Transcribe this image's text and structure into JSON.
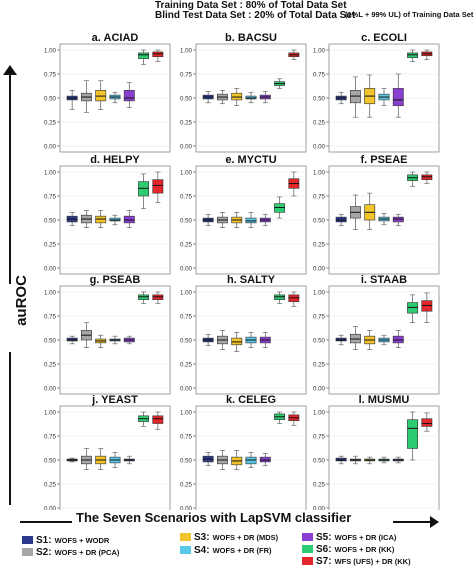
{
  "header": {
    "line1": "Training Data Set : 80% of Total Data Set",
    "line2": "Blind Test Data Set : 20% of Total Data Set",
    "note": "(1%L + 99% UL) of Training Data Set"
  },
  "y_axis_label": "auROC",
  "x_axis_label": "The Seven  Scenarios with LapSVM classifier",
  "legend": [
    {
      "code": "S1:",
      "desc": "WOFS + WODR",
      "color": "#2b3a8f"
    },
    {
      "code": "S2:",
      "desc": "WOFS + DR (PCA)",
      "color": "#a6a6a6"
    },
    {
      "code": "S3:",
      "desc": "WOFS + DR (MDS)",
      "color": "#f2c42c"
    },
    {
      "code": "S4:",
      "desc": "WOFS + DR (FR)",
      "color": "#5bc7e6"
    },
    {
      "code": "S5:",
      "desc": "WOFS + DR (ICA)",
      "color": "#8a3fd1"
    },
    {
      "code": "S6:",
      "desc": "WOFS + DR (KK)",
      "color": "#2ecc71"
    },
    {
      "code": "S7:",
      "desc": "WFS (UFS) + DR (KK)",
      "color": "#e3262b"
    }
  ],
  "chart_data": [
    {
      "type": "box",
      "title": "a. ACIAD",
      "ylim": [
        0,
        1
      ],
      "yticks": [
        "0.00",
        "0.25",
        "0.50",
        "0.75",
        "1.00"
      ],
      "series": [
        {
          "name": "S1",
          "box": [
            0.38,
            0.48,
            0.5,
            0.52,
            0.58
          ]
        },
        {
          "name": "S2",
          "box": [
            0.35,
            0.47,
            0.51,
            0.55,
            0.68
          ]
        },
        {
          "name": "S3",
          "box": [
            0.38,
            0.47,
            0.52,
            0.58,
            0.68
          ]
        },
        {
          "name": "S4",
          "box": [
            0.45,
            0.49,
            0.51,
            0.53,
            0.56
          ]
        },
        {
          "name": "S5",
          "box": [
            0.4,
            0.47,
            0.5,
            0.58,
            0.66
          ]
        },
        {
          "name": "S6",
          "box": [
            0.85,
            0.91,
            0.95,
            0.97,
            1.0
          ]
        },
        {
          "name": "S7",
          "box": [
            0.88,
            0.93,
            0.96,
            0.98,
            1.0
          ]
        }
      ]
    },
    {
      "type": "box",
      "title": "b. BACSU",
      "ylim": [
        0,
        1
      ],
      "yticks": [
        "0.00",
        "0.25",
        "0.50",
        "0.75",
        "1.00"
      ],
      "series": [
        {
          "name": "S1",
          "box": [
            0.45,
            0.49,
            0.51,
            0.53,
            0.57
          ]
        },
        {
          "name": "S2",
          "box": [
            0.44,
            0.48,
            0.51,
            0.54,
            0.58
          ]
        },
        {
          "name": "S3",
          "box": [
            0.42,
            0.48,
            0.51,
            0.55,
            0.6
          ]
        },
        {
          "name": "S4",
          "box": [
            0.45,
            0.49,
            0.5,
            0.52,
            0.56
          ]
        },
        {
          "name": "S5",
          "box": [
            0.45,
            0.49,
            0.51,
            0.53,
            0.57
          ]
        },
        {
          "name": "S6",
          "box": [
            0.6,
            0.63,
            0.65,
            0.67,
            0.7
          ]
        },
        {
          "name": "S7",
          "box": [
            0.9,
            0.93,
            0.95,
            0.97,
            1.0
          ]
        }
      ]
    },
    {
      "type": "box",
      "title": "c. ECOLI",
      "ylim": [
        0,
        1
      ],
      "yticks": [
        "0.00",
        "0.25",
        "0.50",
        "0.75",
        "1.00"
      ],
      "series": [
        {
          "name": "S1",
          "box": [
            0.44,
            0.48,
            0.5,
            0.52,
            0.56
          ]
        },
        {
          "name": "S2",
          "box": [
            0.3,
            0.45,
            0.52,
            0.58,
            0.72
          ]
        },
        {
          "name": "S3",
          "box": [
            0.3,
            0.44,
            0.52,
            0.6,
            0.74
          ]
        },
        {
          "name": "S4",
          "box": [
            0.42,
            0.48,
            0.51,
            0.54,
            0.6
          ]
        },
        {
          "name": "S5",
          "box": [
            0.3,
            0.42,
            0.48,
            0.6,
            0.75
          ]
        },
        {
          "name": "S6",
          "box": [
            0.88,
            0.92,
            0.95,
            0.97,
            1.0
          ]
        },
        {
          "name": "S7",
          "box": [
            0.9,
            0.94,
            0.96,
            0.98,
            1.0
          ]
        }
      ]
    },
    {
      "type": "box",
      "title": "d. HELPY",
      "ylim": [
        0,
        1
      ],
      "yticks": [
        "0.00",
        "0.25",
        "0.50",
        "0.75",
        "1.00"
      ],
      "series": [
        {
          "name": "S1",
          "box": [
            0.44,
            0.48,
            0.51,
            0.54,
            0.58
          ]
        },
        {
          "name": "S2",
          "box": [
            0.42,
            0.47,
            0.51,
            0.55,
            0.6
          ]
        },
        {
          "name": "S3",
          "box": [
            0.42,
            0.47,
            0.51,
            0.54,
            0.6
          ]
        },
        {
          "name": "S4",
          "box": [
            0.45,
            0.49,
            0.5,
            0.52,
            0.55
          ]
        },
        {
          "name": "S5",
          "box": [
            0.42,
            0.47,
            0.5,
            0.54,
            0.6
          ]
        },
        {
          "name": "S6",
          "box": [
            0.62,
            0.75,
            0.83,
            0.9,
            0.98
          ]
        },
        {
          "name": "S7",
          "box": [
            0.68,
            0.78,
            0.86,
            0.92,
            1.0
          ]
        }
      ]
    },
    {
      "type": "box",
      "title": "e. MYCTU",
      "ylim": [
        0,
        1
      ],
      "yticks": [
        "0.00",
        "0.25",
        "0.50",
        "0.75",
        "1.00"
      ],
      "series": [
        {
          "name": "S1",
          "box": [
            0.44,
            0.48,
            0.5,
            0.52,
            0.56
          ]
        },
        {
          "name": "S2",
          "box": [
            0.42,
            0.47,
            0.5,
            0.53,
            0.58
          ]
        },
        {
          "name": "S3",
          "box": [
            0.42,
            0.47,
            0.5,
            0.53,
            0.58
          ]
        },
        {
          "name": "S4",
          "box": [
            0.42,
            0.47,
            0.49,
            0.52,
            0.58
          ]
        },
        {
          "name": "S5",
          "box": [
            0.44,
            0.48,
            0.5,
            0.52,
            0.56
          ]
        },
        {
          "name": "S6",
          "box": [
            0.52,
            0.58,
            0.63,
            0.67,
            0.74
          ]
        },
        {
          "name": "S7",
          "box": [
            0.75,
            0.83,
            0.88,
            0.93,
            1.0
          ]
        }
      ]
    },
    {
      "type": "box",
      "title": "f. PSEAE",
      "ylim": [
        0,
        1
      ],
      "yticks": [
        "0.00",
        "0.25",
        "0.50",
        "0.75",
        "1.00"
      ],
      "series": [
        {
          "name": "S1",
          "box": [
            0.44,
            0.48,
            0.5,
            0.53,
            0.56
          ]
        },
        {
          "name": "S2",
          "box": [
            0.4,
            0.52,
            0.58,
            0.64,
            0.76
          ]
        },
        {
          "name": "S3",
          "box": [
            0.4,
            0.5,
            0.58,
            0.66,
            0.78
          ]
        },
        {
          "name": "S4",
          "box": [
            0.45,
            0.49,
            0.51,
            0.53,
            0.57
          ]
        },
        {
          "name": "S5",
          "box": [
            0.44,
            0.48,
            0.51,
            0.53,
            0.56
          ]
        },
        {
          "name": "S6",
          "box": [
            0.85,
            0.91,
            0.94,
            0.97,
            1.0
          ]
        },
        {
          "name": "S7",
          "box": [
            0.88,
            0.92,
            0.95,
            0.97,
            1.0
          ]
        }
      ]
    },
    {
      "type": "box",
      "title": "g. PSEAB",
      "ylim": [
        0,
        1
      ],
      "yticks": [
        "0.00",
        "0.25",
        "0.50",
        "0.75",
        "1.00"
      ],
      "series": [
        {
          "name": "S1",
          "box": [
            0.46,
            0.49,
            0.5,
            0.52,
            0.54
          ]
        },
        {
          "name": "S2",
          "box": [
            0.42,
            0.5,
            0.55,
            0.6,
            0.68
          ]
        },
        {
          "name": "S3",
          "box": [
            0.42,
            0.47,
            0.49,
            0.51,
            0.55
          ]
        },
        {
          "name": "S4",
          "box": [
            0.46,
            0.49,
            0.5,
            0.51,
            0.54
          ]
        },
        {
          "name": "S5",
          "box": [
            0.46,
            0.48,
            0.5,
            0.52,
            0.54
          ]
        },
        {
          "name": "S6",
          "box": [
            0.88,
            0.92,
            0.95,
            0.97,
            1.0
          ]
        },
        {
          "name": "S7",
          "box": [
            0.88,
            0.92,
            0.95,
            0.97,
            1.0
          ]
        }
      ]
    },
    {
      "type": "box",
      "title": "h. SALTY",
      "ylim": [
        0,
        1
      ],
      "yticks": [
        "0.00",
        "0.25",
        "0.50",
        "0.75",
        "1.00"
      ],
      "series": [
        {
          "name": "S1",
          "box": [
            0.44,
            0.48,
            0.5,
            0.52,
            0.56
          ]
        },
        {
          "name": "S2",
          "box": [
            0.4,
            0.46,
            0.5,
            0.54,
            0.6
          ]
        },
        {
          "name": "S3",
          "box": [
            0.38,
            0.45,
            0.48,
            0.52,
            0.58
          ]
        },
        {
          "name": "S4",
          "box": [
            0.42,
            0.47,
            0.5,
            0.53,
            0.58
          ]
        },
        {
          "name": "S5",
          "box": [
            0.42,
            0.47,
            0.5,
            0.53,
            0.58
          ]
        },
        {
          "name": "S6",
          "box": [
            0.88,
            0.92,
            0.95,
            0.97,
            1.0
          ]
        },
        {
          "name": "S7",
          "box": [
            0.85,
            0.9,
            0.94,
            0.97,
            1.0
          ]
        }
      ]
    },
    {
      "type": "box",
      "title": "i. STAAB",
      "ylim": [
        0,
        1
      ],
      "yticks": [
        "0.00",
        "0.25",
        "0.50",
        "0.75",
        "1.00"
      ],
      "series": [
        {
          "name": "S1",
          "box": [
            0.45,
            0.49,
            0.5,
            0.52,
            0.55
          ]
        },
        {
          "name": "S2",
          "box": [
            0.4,
            0.47,
            0.51,
            0.56,
            0.64
          ]
        },
        {
          "name": "S3",
          "box": [
            0.4,
            0.46,
            0.5,
            0.54,
            0.6
          ]
        },
        {
          "name": "S4",
          "box": [
            0.45,
            0.48,
            0.5,
            0.52,
            0.55
          ]
        },
        {
          "name": "S5",
          "box": [
            0.42,
            0.47,
            0.5,
            0.54,
            0.6
          ]
        },
        {
          "name": "S6",
          "box": [
            0.68,
            0.78,
            0.84,
            0.89,
            0.97
          ]
        },
        {
          "name": "S7",
          "box": [
            0.68,
            0.8,
            0.86,
            0.91,
            0.99
          ]
        }
      ]
    },
    {
      "type": "box",
      "title": "j. YEAST",
      "ylim": [
        0,
        1
      ],
      "yticks": [
        "0.00",
        "0.25",
        "0.50",
        "0.75",
        "1.00"
      ],
      "series": [
        {
          "name": "S1",
          "box": [
            0.48,
            0.49,
            0.5,
            0.51,
            0.52
          ]
        },
        {
          "name": "S2",
          "box": [
            0.4,
            0.46,
            0.5,
            0.54,
            0.62
          ]
        },
        {
          "name": "S3",
          "box": [
            0.4,
            0.46,
            0.5,
            0.54,
            0.62
          ]
        },
        {
          "name": "S4",
          "box": [
            0.42,
            0.47,
            0.5,
            0.53,
            0.58
          ]
        },
        {
          "name": "S5",
          "box": [
            0.46,
            0.49,
            0.5,
            0.51,
            0.54
          ]
        },
        {
          "name": "S6",
          "box": [
            0.85,
            0.9,
            0.93,
            0.96,
            1.0
          ]
        },
        {
          "name": "S7",
          "box": [
            0.82,
            0.88,
            0.93,
            0.96,
            1.0
          ]
        }
      ]
    },
    {
      "type": "box",
      "title": "k. CELEG",
      "ylim": [
        0,
        1
      ],
      "yticks": [
        "0.00",
        "0.25",
        "0.50",
        "0.75",
        "1.00"
      ],
      "series": [
        {
          "name": "S1",
          "box": [
            0.44,
            0.48,
            0.51,
            0.54,
            0.58
          ]
        },
        {
          "name": "S2",
          "box": [
            0.4,
            0.46,
            0.5,
            0.54,
            0.6
          ]
        },
        {
          "name": "S3",
          "box": [
            0.4,
            0.45,
            0.49,
            0.53,
            0.6
          ]
        },
        {
          "name": "S4",
          "box": [
            0.42,
            0.46,
            0.5,
            0.53,
            0.58
          ]
        },
        {
          "name": "S5",
          "box": [
            0.44,
            0.48,
            0.5,
            0.53,
            0.57
          ]
        },
        {
          "name": "S6",
          "box": [
            0.88,
            0.92,
            0.95,
            0.98,
            1.0
          ]
        },
        {
          "name": "S7",
          "box": [
            0.86,
            0.91,
            0.94,
            0.97,
            1.0
          ]
        }
      ]
    },
    {
      "type": "box",
      "title": "l. MUSMU",
      "ylim": [
        0,
        1
      ],
      "yticks": [
        "0.00",
        "0.25",
        "0.50",
        "0.75",
        "1.00"
      ],
      "series": [
        {
          "name": "S1",
          "box": [
            0.46,
            0.49,
            0.5,
            0.52,
            0.54
          ]
        },
        {
          "name": "S2",
          "box": [
            0.46,
            0.49,
            0.5,
            0.51,
            0.54
          ]
        },
        {
          "name": "S3",
          "box": [
            0.46,
            0.49,
            0.5,
            0.51,
            0.53
          ]
        },
        {
          "name": "S4",
          "box": [
            0.47,
            0.49,
            0.5,
            0.51,
            0.53
          ]
        },
        {
          "name": "S5",
          "box": [
            0.47,
            0.49,
            0.5,
            0.51,
            0.53
          ]
        },
        {
          "name": "S6",
          "box": [
            0.5,
            0.62,
            0.83,
            0.92,
            1.0
          ]
        },
        {
          "name": "S7",
          "box": [
            0.8,
            0.85,
            0.88,
            0.93,
            0.99
          ]
        }
      ]
    }
  ]
}
